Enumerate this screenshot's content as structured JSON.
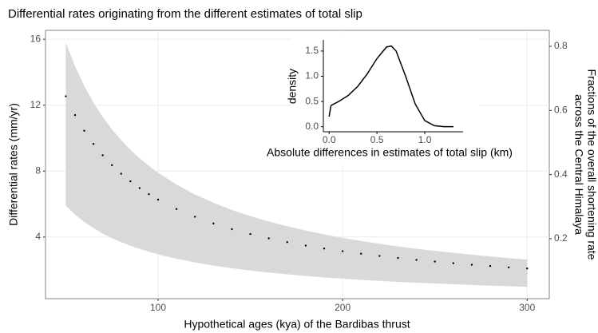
{
  "chart_data": [
    {
      "type": "ribbon-dots",
      "title": "Differential rates originating from the different estimates of total slip",
      "x_label": "Hypothetical ages (kya) of the Bardibas thrust",
      "y_label": "Differential rates (mm/yr)",
      "y2_label": [
        "Fractions of the overall shortening rate",
        "across the Central Himalaya"
      ],
      "x": [
        50,
        55,
        60,
        65,
        70,
        75,
        80,
        85,
        90,
        95,
        100,
        110,
        120,
        130,
        140,
        150,
        160,
        170,
        180,
        190,
        200,
        210,
        220,
        230,
        240,
        250,
        260,
        270,
        280,
        290,
        300
      ],
      "values": [
        12.54,
        11.4,
        10.45,
        9.65,
        8.96,
        8.36,
        7.84,
        7.38,
        6.97,
        6.6,
        6.27,
        5.7,
        5.23,
        4.82,
        4.48,
        4.18,
        3.92,
        3.69,
        3.48,
        3.3,
        3.14,
        2.99,
        2.85,
        2.73,
        2.61,
        2.51,
        2.41,
        2.32,
        2.24,
        2.16,
        2.09
      ],
      "upper": [
        15.8,
        14.36,
        13.17,
        12.15,
        11.29,
        10.53,
        9.88,
        9.29,
        8.78,
        8.32,
        7.9,
        7.18,
        6.58,
        6.08,
        5.64,
        5.27,
        4.94,
        4.65,
        4.39,
        4.16,
        3.95,
        3.76,
        3.59,
        3.43,
        3.29,
        3.16,
        3.04,
        2.93,
        2.82,
        2.72,
        2.63
      ],
      "lower": [
        5.9,
        5.36,
        4.92,
        4.54,
        4.21,
        3.93,
        3.69,
        3.47,
        3.28,
        3.11,
        2.95,
        2.68,
        2.46,
        2.27,
        2.11,
        1.97,
        1.84,
        1.74,
        1.64,
        1.55,
        1.48,
        1.4,
        1.34,
        1.28,
        1.23,
        1.18,
        1.13,
        1.09,
        1.05,
        1.02,
        0.98
      ],
      "point_color": "#000000",
      "band_color": "#d9d9d9",
      "xlim": [
        39,
        312
      ],
      "xticks": [
        100,
        200,
        300
      ],
      "ylim": [
        0.26,
        16.54
      ],
      "yticks": [
        4,
        8,
        12,
        16
      ],
      "y2lim": [
        0.013,
        0.85
      ],
      "y2ticks": [
        0.2,
        0.4,
        0.6,
        0.8
      ],
      "grid": true
    },
    {
      "type": "line",
      "x_label": "Absolute differences in estimates of total slip (km)",
      "y_label": "density",
      "x": [
        0,
        0.02,
        0.1,
        0.2,
        0.3,
        0.4,
        0.5,
        0.6,
        0.65,
        0.7,
        0.8,
        0.9,
        1.0,
        1.1,
        1.2,
        1.3
      ],
      "values": [
        0.2,
        0.42,
        0.5,
        0.62,
        0.8,
        1.05,
        1.35,
        1.58,
        1.6,
        1.5,
        1.0,
        0.45,
        0.12,
        0.02,
        0.0,
        0.0
      ],
      "color": "#000000",
      "xlim": [
        -0.06,
        1.4
      ],
      "xticks": [
        {
          "value": 0,
          "label": "0.0"
        },
        0.5,
        {
          "value": 1,
          "label": "1.0"
        }
      ],
      "ylim": [
        -0.1,
        1.72
      ],
      "yticks": [
        {
          "value": 0,
          "label": "0.0"
        },
        0.5,
        {
          "value": 1,
          "label": "1.0"
        },
        1.5
      ]
    }
  ]
}
